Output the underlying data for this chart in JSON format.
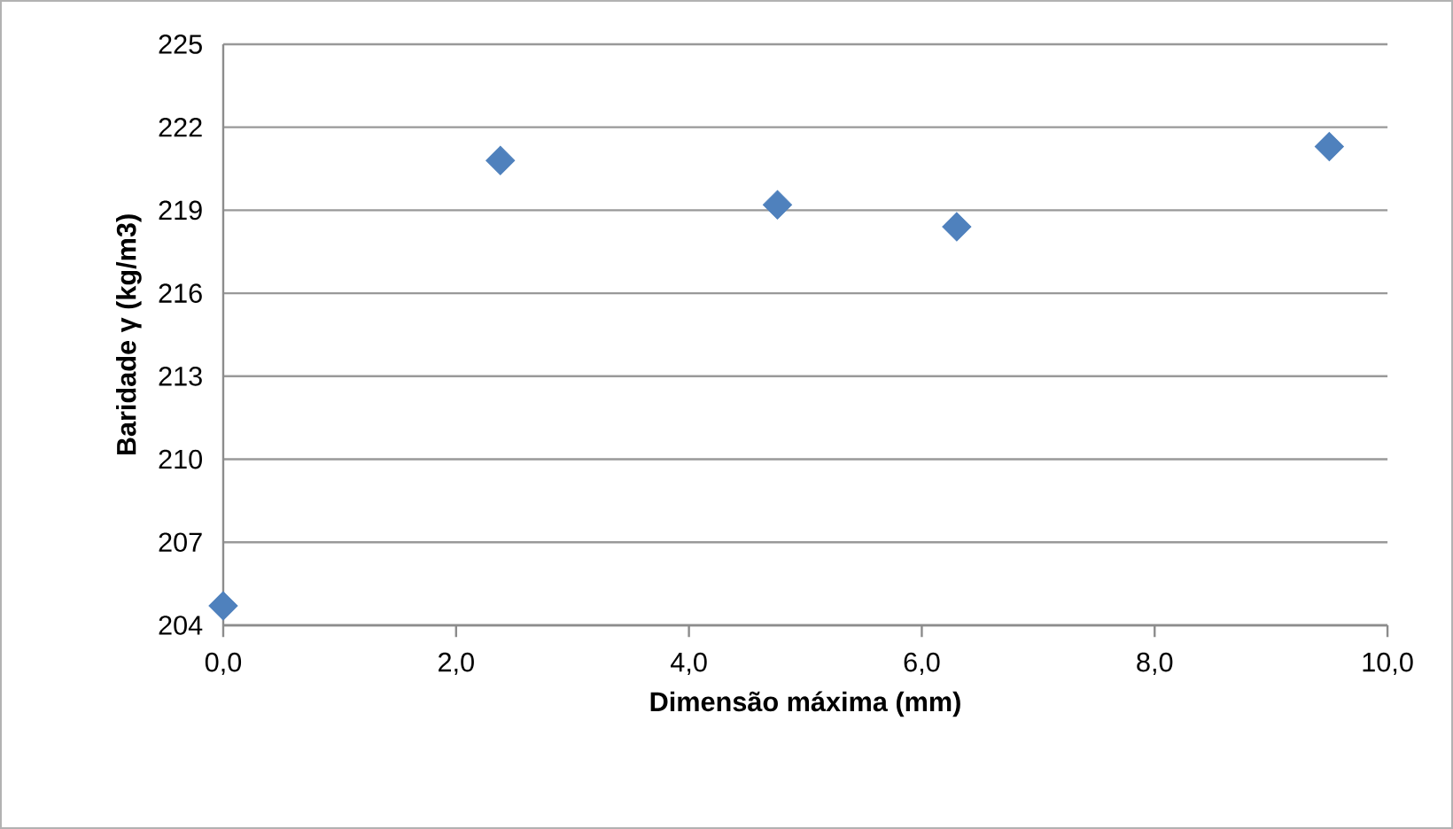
{
  "chart_data": {
    "type": "scatter",
    "xlabel": "Dimensão máxima (mm)",
    "ylabel": "Baridade γ (kg/m3)",
    "x": [
      0,
      2.38,
      4.76,
      6.3,
      9.5
    ],
    "series": [
      {
        "color": "#4f81bd",
        "values": [
          204.7,
          220.8,
          219.2,
          218.4,
          221.3
        ]
      }
    ],
    "xlim": [
      0,
      10
    ],
    "ylim": [
      204,
      225
    ],
    "xticks": [
      {
        "value": 0,
        "label": "0,0"
      },
      {
        "value": 2,
        "label": "2,0"
      },
      {
        "value": 4,
        "label": "4,0"
      },
      {
        "value": 6,
        "label": "6,0"
      },
      {
        "value": 8,
        "label": "8,0"
      },
      {
        "value": 10,
        "label": "10,0"
      }
    ],
    "yticks": [
      204,
      207,
      210,
      213,
      216,
      219,
      222,
      225
    ],
    "grid": "y",
    "marker": "diamond"
  }
}
